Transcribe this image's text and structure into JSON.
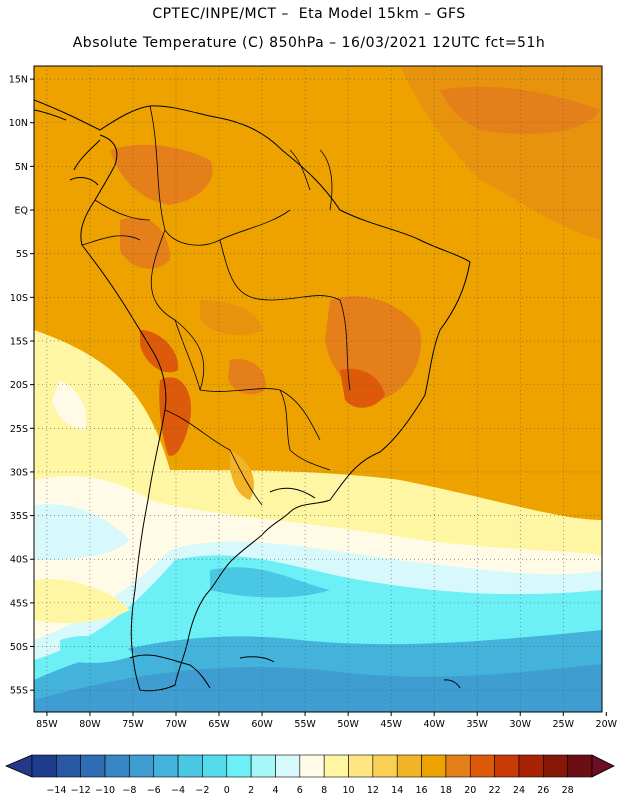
{
  "title": {
    "line1": "CPTEC/INPE/MCT –  Eta Model 15km – GFS",
    "line2": "Absolute Temperature (C) 850hPa – 16/03/2021 12UTC fct=51h"
  },
  "map": {
    "lat_labels": [
      "15N",
      "10N",
      "5N",
      "EQ",
      "5S",
      "10S",
      "15S",
      "20S",
      "25S",
      "30S",
      "35S",
      "40S",
      "45S",
      "50S",
      "55S"
    ],
    "lat_values": [
      15,
      10,
      5,
      0,
      -5,
      -10,
      -15,
      -20,
      -25,
      -30,
      -35,
      -40,
      -45,
      -50,
      -55
    ],
    "lon_labels": [
      "85W",
      "80W",
      "75W",
      "70W",
      "65W",
      "60W",
      "55W",
      "50W",
      "45W",
      "40W",
      "35W",
      "30W",
      "25W",
      "20W"
    ],
    "lon_values": [
      -85,
      -80,
      -75,
      -70,
      -65,
      -60,
      -55,
      -50,
      -45,
      -40,
      -35,
      -30,
      -25,
      -20
    ],
    "lat_range": [
      -57.5,
      16.5
    ],
    "lon_range": [
      -86.5,
      -20.5
    ],
    "grid": "dotted"
  },
  "colorbar": {
    "labels": [
      "-14",
      "-12",
      "-10",
      "-8",
      "-6",
      "-4",
      "-2",
      "0",
      "2",
      "4",
      "6",
      "8",
      "10",
      "12",
      "14",
      "16",
      "18",
      "20",
      "22",
      "24",
      "26",
      "28"
    ],
    "colors": [
      "#1f3c8c",
      "#2857a3",
      "#2f6db5",
      "#3886c4",
      "#3f9dd1",
      "#44b3db",
      "#4ac8e3",
      "#55dcec",
      "#6ceff5",
      "#a5f7fa",
      "#d8f9fb",
      "#fffbe6",
      "#fff6a3",
      "#ffe680",
      "#f8d053",
      "#f2b426",
      "#eea200",
      "#e57f1a",
      "#dc5a0a",
      "#c83a05",
      "#a82204",
      "#861807",
      "#6b0f14"
    ],
    "left_cap_color": "#253887",
    "right_cap_color": "#6b0f24"
  }
}
